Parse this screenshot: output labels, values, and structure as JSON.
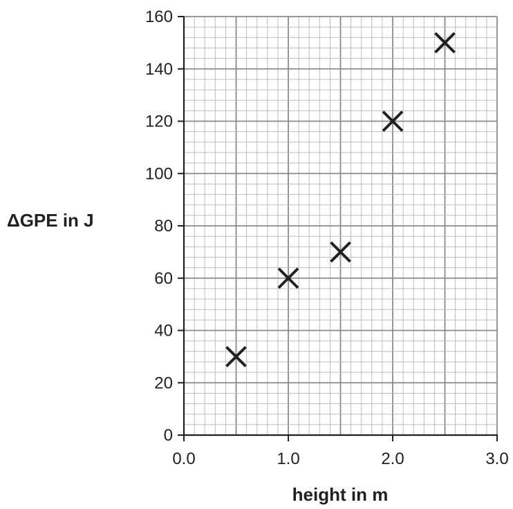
{
  "chart_data": {
    "type": "scatter",
    "title": "",
    "xlabel": "height in m",
    "ylabel": "ΔGPE in J",
    "xlim": [
      0,
      3
    ],
    "ylim": [
      0,
      160
    ],
    "x_ticks": [
      "0.0",
      "1.0",
      "2.0",
      "3.0"
    ],
    "y_ticks": [
      "0",
      "20",
      "40",
      "60",
      "80",
      "100",
      "120",
      "140",
      "160"
    ],
    "grid": true,
    "marker": "x",
    "points": [
      {
        "x": 0.5,
        "y": 30
      },
      {
        "x": 1.0,
        "y": 60
      },
      {
        "x": 1.5,
        "y": 70
      },
      {
        "x": 2.0,
        "y": 120
      },
      {
        "x": 2.5,
        "y": 150
      }
    ],
    "colors": {
      "minor_grid": "#b5b5b5",
      "major_grid": "#8a8a8a",
      "axis": "#231f20",
      "marker": "#231f20"
    }
  }
}
